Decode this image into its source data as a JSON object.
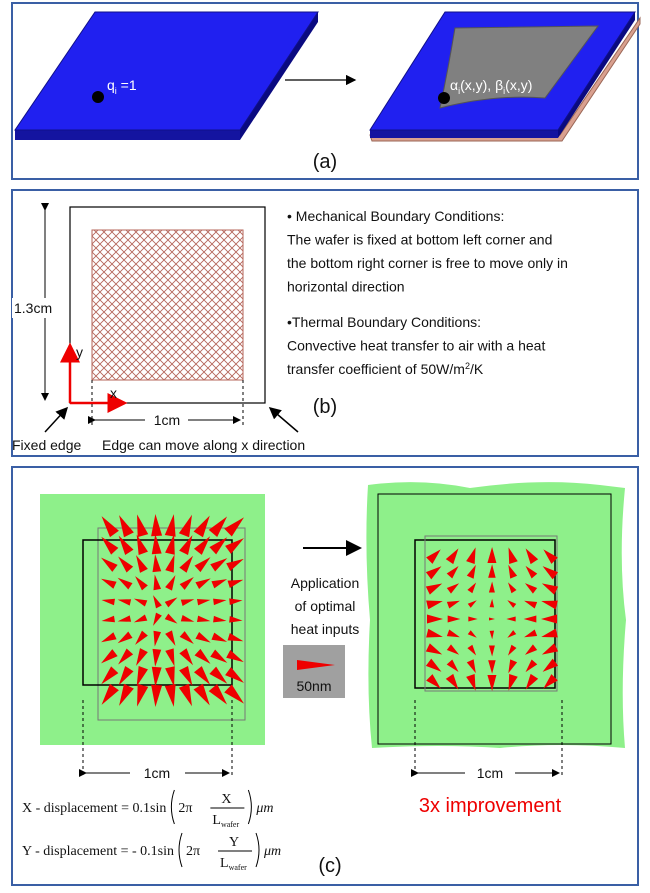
{
  "panel_a": {
    "left_label": {
      "main": "q",
      "sub": "i",
      "rest": " =1"
    },
    "right_label": {
      "a": "α",
      "a_sub": "i",
      "a_rest": "(x,y), ",
      "b": "β",
      "b_sub": "i",
      "b_rest": "(x,y)"
    },
    "caption": "(a)"
  },
  "panel_b": {
    "height_label": "1.3cm",
    "y_axis": "y",
    "x_axis": "x",
    "width_label": "1cm",
    "caption": "(b)",
    "fixed_edge": "Fixed edge",
    "moving_edge": "Edge can move along x direction",
    "mechanical": [
      "• Mechanical Boundary Conditions:",
      "The wafer is fixed at bottom left corner and",
      "the bottom right corner is free to move only in",
      "horizontal direction"
    ],
    "thermal": [
      "•Thermal Boundary Conditions:",
      "Convective heat transfer to air with a heat"
    ],
    "thermal_last": {
      "before": "transfer coefficient of 50W/m",
      "sup": "2",
      "after": "/K"
    }
  },
  "panel_c": {
    "step": [
      "Application",
      "of optimal",
      "heat inputs"
    ],
    "scale_label": "50nm",
    "left_width": "1cm",
    "right_width": "1cm",
    "improvement": "3x improvement",
    "eq_x": {
      "lhs": "X - displacement = 0.1sin",
      "coef": "2π",
      "num": "X",
      "den": "L",
      "den_sub": "wafer",
      "unit": "μm"
    },
    "eq_y": {
      "lhs": "Y - displacement = - 0.1sin",
      "coef": "2π",
      "num": "Y",
      "den": "L",
      "den_sub": "wafer",
      "unit": "μm"
    },
    "caption": "(c)"
  }
}
